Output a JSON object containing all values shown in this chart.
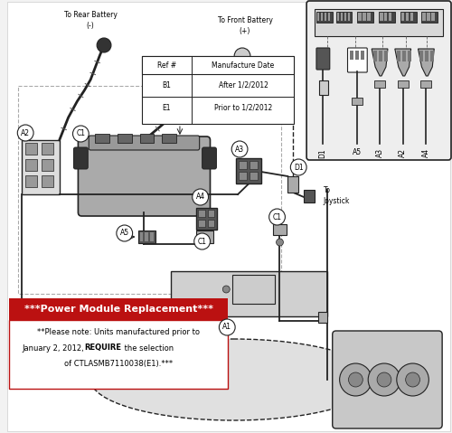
{
  "bg_color": "#f2f2f2",
  "warning_title": "***Power Module Replacement***",
  "warning_line1": "**Please note: Units manufactured prior to",
  "warning_line2": "January 2, 2012, ",
  "warning_line2b": "REQUIRE",
  "warning_line2c": " the selection",
  "warning_line3": "of CTLASMB7110038(E1).***",
  "table_headers": [
    "Ref #",
    "Manufacture Date"
  ],
  "table_rows": [
    [
      "B1",
      "After 1/2/2012"
    ],
    [
      "E1",
      "Prior to 1/2/2012"
    ]
  ],
  "annotation_rear_battery": "To Rear Battery\n(-)",
  "annotation_front_battery": "To Front Battery\n(+)",
  "annotation_joystick": "To\nJoystick",
  "warning_box_color": "#bb1111",
  "warning_text_color": "#ffffff",
  "note_bg_color": "#ffffff",
  "note_border_color": "#bb1111",
  "lc": "#222222",
  "lc_light": "#888888",
  "fill_dark": "#555555",
  "fill_med": "#888888",
  "fill_light": "#bbbbbb",
  "fill_charger": "#aaaaaa",
  "inset_bg": "#eeeeee",
  "white": "#ffffff"
}
